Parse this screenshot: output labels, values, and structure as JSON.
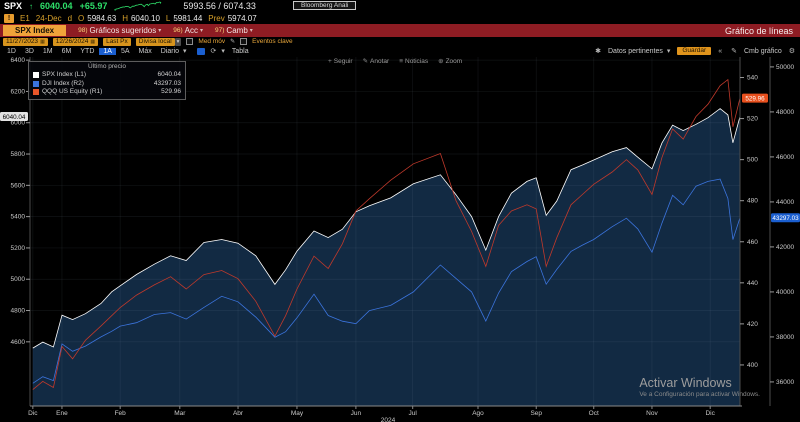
{
  "icons": {
    "arrow_up": "↑",
    "caret": "▾",
    "calendar": "▦",
    "pencil": "✎",
    "gear": "⚙",
    "chevrons_left": "«",
    "refresh": "⟳",
    "asterisk": "✱",
    "plus": "+",
    "news": "≡",
    "zoom": "⊕",
    "alert": "!",
    "dot": "·"
  },
  "quote_bar": {
    "ticker": "SPX",
    "last": "6040.04",
    "change": "+65.97",
    "range": "5993.56 / 6074.33",
    "badge": "Bloomberg Anali"
  },
  "ohlc_bar": {
    "session": "E1",
    "date": "24-Dec",
    "flag": "d",
    "open_label": "O",
    "open": "5984.63",
    "high_label": "H",
    "high": "6040.10",
    "low_label": "L",
    "low": "5981.44",
    "prev_label": "Prev",
    "prev": "5974.07"
  },
  "menu_bar": {
    "security": "SPX Index",
    "items": [
      {
        "num": "98)",
        "label": "Gráficos sugeridos"
      },
      {
        "num": "96)",
        "label": "Acc"
      },
      {
        "num": "97)",
        "label": "Camb"
      }
    ],
    "title": "Gráfico de líneas"
  },
  "fields_bar": {
    "start_date": "11/27/2023",
    "end_date": "12/26/2024",
    "price_field": "Last Px",
    "currency": "Divisa local",
    "mov_avg_label": "Med móv",
    "key_events_label": "Eventos clave"
  },
  "range_bar": {
    "ranges": [
      "1D",
      "3D",
      "1M",
      "6M",
      "YTD",
      "1A",
      "5A",
      "Máx"
    ],
    "active": "1A",
    "period": "Diario",
    "table_label": "Tabla",
    "relevant_data_label": "Datos pertinentes",
    "save_label": "Guardar",
    "edit_chart_label": "Cmb gráfico"
  },
  "chart_toolbar": {
    "follow": "Seguir",
    "annotate": "Anotar",
    "news": "Noticias",
    "zoom": "Zoom"
  },
  "legend": {
    "title": "Último precio",
    "entries": [
      {
        "swatch": "#ffffff",
        "label": "SPX Index  (L1)",
        "value": "6040.04"
      },
      {
        "swatch": "#3b74dd",
        "label": "DJI Index  (R2)",
        "value": "43297.03"
      },
      {
        "swatch": "#e8562a",
        "label": "QQQ US Equity  (R1)",
        "value": "529.96"
      }
    ]
  },
  "watermark": {
    "line1": "Activar Windows",
    "line2": "Ve a Configuración para activar Windows."
  },
  "chart_data": {
    "type": "line",
    "title": "SPX Index — Gráfico de líneas (11/27/2023 - 12/26/2024)",
    "x_axis": {
      "labels": [
        "Dic",
        "Ene",
        "Feb",
        "Mar",
        "Abr",
        "May",
        "Jun",
        "Jul",
        "Ago",
        "Sep",
        "Oct",
        "Nov",
        "Dic"
      ],
      "fractions": [
        0.004,
        0.045,
        0.127,
        0.211,
        0.293,
        0.376,
        0.459,
        0.539,
        0.631,
        0.713,
        0.794,
        0.876,
        0.958
      ],
      "year": "2024"
    },
    "axes": {
      "left": {
        "min": 4190,
        "max": 6420,
        "ticks": [
          4600,
          4800,
          5000,
          5200,
          5400,
          5600,
          5800,
          6000,
          6200,
          6400
        ],
        "tag": {
          "value": "6040.04",
          "bg": "#e4e4e4",
          "fg": "#000000"
        }
      },
      "right_inner": {
        "min": 380,
        "max": 550,
        "ticks": [
          400,
          420,
          440,
          460,
          480,
          500,
          520,
          540
        ],
        "tag": {
          "value": "529.96",
          "bg": "#e8501e",
          "fg": "#ffffff"
        }
      },
      "right_outer": {
        "min": 34930,
        "max": 50440,
        "ticks": [
          36000,
          38000,
          40000,
          42000,
          44000,
          46000,
          48000,
          50000
        ],
        "tag": {
          "value": "43297.03",
          "bg": "#1b5fd0",
          "fg": "#ffffff"
        }
      }
    },
    "series": [
      {
        "name": "DJI Index",
        "key": "R2",
        "axis": "right_outer",
        "color": "#3b74dd",
        "width": 0.8,
        "points": [
          [
            0.004,
            35940
          ],
          [
            0.018,
            36230
          ],
          [
            0.033,
            36060
          ],
          [
            0.045,
            37690
          ],
          [
            0.06,
            37360
          ],
          [
            0.078,
            37590
          ],
          [
            0.1,
            38000
          ],
          [
            0.115,
            38250
          ],
          [
            0.127,
            38480
          ],
          [
            0.15,
            38630
          ],
          [
            0.175,
            38996
          ],
          [
            0.198,
            39080
          ],
          [
            0.22,
            38790
          ],
          [
            0.245,
            39310
          ],
          [
            0.27,
            39807
          ],
          [
            0.293,
            39560
          ],
          [
            0.318,
            38880
          ],
          [
            0.345,
            37986
          ],
          [
            0.36,
            38230
          ],
          [
            0.376,
            38850
          ],
          [
            0.4,
            39900
          ],
          [
            0.42,
            38950
          ],
          [
            0.44,
            38700
          ],
          [
            0.459,
            38589
          ],
          [
            0.478,
            39170
          ],
          [
            0.508,
            39400
          ],
          [
            0.54,
            40000
          ],
          [
            0.578,
            41198
          ],
          [
            0.6,
            40600
          ],
          [
            0.622,
            40000
          ],
          [
            0.642,
            38703
          ],
          [
            0.66,
            39950
          ],
          [
            0.678,
            40900
          ],
          [
            0.7,
            41350
          ],
          [
            0.713,
            41563
          ],
          [
            0.727,
            40345
          ],
          [
            0.742,
            41000
          ],
          [
            0.762,
            41800
          ],
          [
            0.778,
            42080
          ],
          [
            0.794,
            42330
          ],
          [
            0.82,
            42900
          ],
          [
            0.84,
            43275
          ],
          [
            0.856,
            42800
          ],
          [
            0.876,
            41763
          ],
          [
            0.89,
            43050
          ],
          [
            0.905,
            44293
          ],
          [
            0.92,
            43870
          ],
          [
            0.938,
            44700
          ],
          [
            0.955,
            44911
          ],
          [
            0.972,
            45014
          ],
          [
            0.983,
            44150
          ],
          [
            0.99,
            42327
          ],
          [
            1.0,
            43297.03
          ]
        ]
      },
      {
        "name": "SPX Index",
        "key": "L1",
        "axis": "left",
        "color": "#ffffff",
        "width": 0.8,
        "fill": "#122a43",
        "points": [
          [
            0.004,
            4560
          ],
          [
            0.018,
            4598
          ],
          [
            0.033,
            4567
          ],
          [
            0.045,
            4770
          ],
          [
            0.06,
            4742
          ],
          [
            0.078,
            4780
          ],
          [
            0.1,
            4845
          ],
          [
            0.115,
            4920
          ],
          [
            0.127,
            4958
          ],
          [
            0.15,
            5030
          ],
          [
            0.175,
            5096
          ],
          [
            0.198,
            5150
          ],
          [
            0.22,
            5120
          ],
          [
            0.245,
            5235
          ],
          [
            0.27,
            5254
          ],
          [
            0.293,
            5230
          ],
          [
            0.318,
            5150
          ],
          [
            0.345,
            4967
          ],
          [
            0.36,
            5060
          ],
          [
            0.376,
            5180
          ],
          [
            0.4,
            5308
          ],
          [
            0.42,
            5266
          ],
          [
            0.44,
            5320
          ],
          [
            0.459,
            5431
          ],
          [
            0.478,
            5470
          ],
          [
            0.508,
            5520
          ],
          [
            0.54,
            5610
          ],
          [
            0.578,
            5667
          ],
          [
            0.6,
            5540
          ],
          [
            0.622,
            5400
          ],
          [
            0.642,
            5186
          ],
          [
            0.66,
            5400
          ],
          [
            0.678,
            5550
          ],
          [
            0.7,
            5625
          ],
          [
            0.713,
            5648
          ],
          [
            0.727,
            5408
          ],
          [
            0.742,
            5500
          ],
          [
            0.762,
            5700
          ],
          [
            0.778,
            5730
          ],
          [
            0.794,
            5762
          ],
          [
            0.82,
            5815
          ],
          [
            0.84,
            5841
          ],
          [
            0.856,
            5780
          ],
          [
            0.876,
            5705
          ],
          [
            0.89,
            5870
          ],
          [
            0.905,
            5984
          ],
          [
            0.92,
            5950
          ],
          [
            0.938,
            5990
          ],
          [
            0.955,
            6032
          ],
          [
            0.972,
            6090
          ],
          [
            0.983,
            6050
          ],
          [
            0.99,
            5872
          ],
          [
            1.0,
            6040.04
          ]
        ]
      },
      {
        "name": "QQQ US Equity",
        "key": "R1",
        "axis": "right_inner",
        "color": "#c0392b",
        "width": 0.8,
        "points": [
          [
            0.004,
            388
          ],
          [
            0.018,
            392
          ],
          [
            0.033,
            389
          ],
          [
            0.045,
            409
          ],
          [
            0.06,
            403
          ],
          [
            0.078,
            412
          ],
          [
            0.1,
            419
          ],
          [
            0.115,
            424
          ],
          [
            0.127,
            428
          ],
          [
            0.15,
            434
          ],
          [
            0.175,
            439
          ],
          [
            0.198,
            443
          ],
          [
            0.22,
            437
          ],
          [
            0.245,
            444
          ],
          [
            0.27,
            446
          ],
          [
            0.293,
            442
          ],
          [
            0.318,
            431
          ],
          [
            0.345,
            414
          ],
          [
            0.36,
            424
          ],
          [
            0.376,
            437
          ],
          [
            0.4,
            453
          ],
          [
            0.42,
            447
          ],
          [
            0.44,
            459
          ],
          [
            0.459,
            475
          ],
          [
            0.478,
            481
          ],
          [
            0.508,
            490
          ],
          [
            0.54,
            498
          ],
          [
            0.578,
            503
          ],
          [
            0.6,
            480
          ],
          [
            0.622,
            465
          ],
          [
            0.642,
            448
          ],
          [
            0.66,
            468
          ],
          [
            0.678,
            475
          ],
          [
            0.7,
            478
          ],
          [
            0.713,
            476
          ],
          [
            0.727,
            448
          ],
          [
            0.742,
            462
          ],
          [
            0.762,
            478
          ],
          [
            0.778,
            483
          ],
          [
            0.794,
            488
          ],
          [
            0.82,
            494
          ],
          [
            0.84,
            500
          ],
          [
            0.856,
            495
          ],
          [
            0.876,
            483
          ],
          [
            0.89,
            501
          ],
          [
            0.905,
            515
          ],
          [
            0.92,
            510
          ],
          [
            0.938,
            521
          ],
          [
            0.955,
            527
          ],
          [
            0.972,
            536
          ],
          [
            0.983,
            539
          ],
          [
            0.99,
            516
          ],
          [
            1.0,
            529.96
          ]
        ]
      }
    ]
  }
}
